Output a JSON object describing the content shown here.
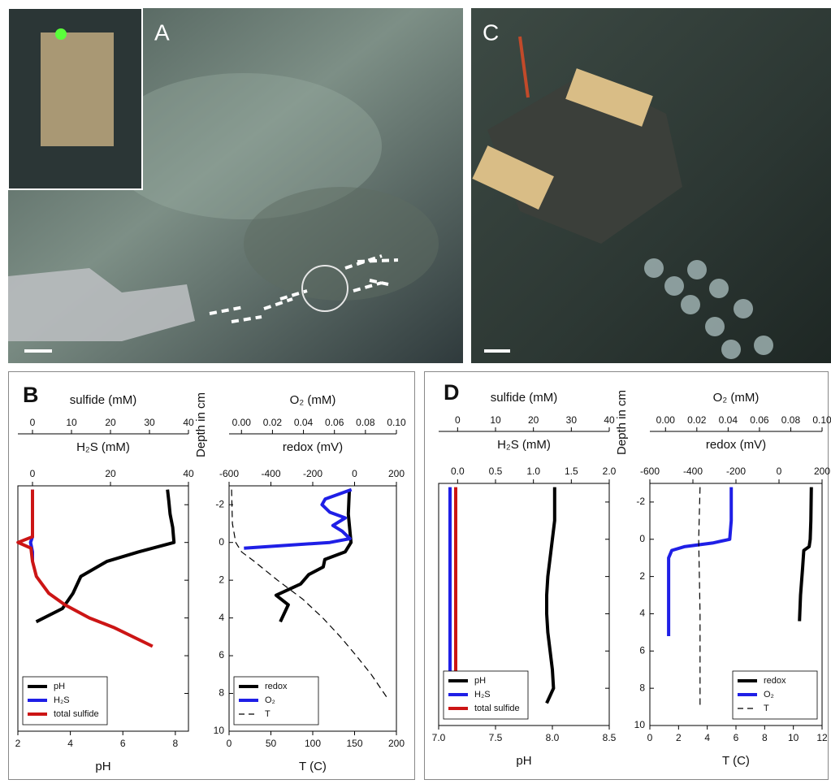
{
  "photos": [
    {
      "label": "A"
    },
    {
      "label": "C"
    }
  ],
  "chart_data": [
    {
      "type": "line",
      "panel": "B",
      "ylim": [
        10,
        -3
      ],
      "yticks": [
        -2,
        0,
        2,
        4,
        6,
        8,
        10
      ],
      "legend": "lower left",
      "axes": {
        "top": {
          "label": "sulfide (mM)",
          "lim": [
            -3.75,
            40
          ],
          "ticks": [
            0,
            10,
            20,
            30,
            40
          ]
        },
        "top2": {
          "label": "H₂S (mM)",
          "lim": [
            -3.75,
            40
          ],
          "ticks": [
            0,
            20,
            40
          ]
        },
        "bottom": {
          "label": "pH",
          "lim": [
            2,
            8.5
          ],
          "ticks": [
            2,
            4,
            6,
            8
          ]
        }
      },
      "series": [
        {
          "name": "pH",
          "color": "#000000",
          "axis": "bottom",
          "depth": [
            -2.8,
            -2.2,
            -1.5,
            -0.8,
            0,
            0.5,
            1,
            1.8,
            2.7,
            3.5,
            4.2
          ],
          "values": [
            7.7,
            7.75,
            7.8,
            7.9,
            7.95,
            6.6,
            5.4,
            4.4,
            4.1,
            3.7,
            2.7
          ]
        },
        {
          "name": "H₂S",
          "color": "#1f1fe6",
          "axis": "top2",
          "depth": [
            -2.8,
            -1,
            -0.3,
            0,
            0.2,
            0.5,
            1
          ],
          "values": [
            0,
            0,
            0,
            -0.5,
            -0.3,
            0,
            0
          ]
        },
        {
          "name": "total sulfide",
          "color": "#cc1515",
          "axis": "top",
          "depth": [
            -2.8,
            -1,
            -0.3,
            0,
            0.3,
            1,
            1.8,
            2.7,
            3.3,
            4,
            4.5,
            5.5
          ],
          "values": [
            0,
            0,
            0,
            -3.7,
            -0.4,
            0,
            1,
            4.2,
            8.3,
            14.6,
            20.8,
            30.8
          ]
        }
      ]
    },
    {
      "type": "line",
      "ylim": [
        10,
        -3
      ],
      "yticks": [
        -2,
        0,
        2,
        4,
        6,
        8,
        10
      ],
      "y_label": "Depth in cm",
      "legend": "lower left",
      "axes": {
        "top": {
          "label": "O₂ (mM)",
          "lim": [
            -0.008,
            0.1
          ],
          "ticks": [
            {
              "value": 0,
              "label": "0.00"
            },
            0.02,
            0.04,
            0.06,
            0.08,
            {
              "value": 0.1,
              "label": "0.10"
            }
          ]
        },
        "top2": {
          "label": "redox (mV)",
          "lim": [
            -600,
            200
          ],
          "ticks": [
            -600,
            -400,
            -200,
            0,
            200
          ]
        },
        "bottom": {
          "label": "T (C)",
          "lim": [
            0,
            200
          ],
          "ticks": [
            0,
            50,
            100,
            150,
            200
          ]
        }
      },
      "series": [
        {
          "name": "redox",
          "color": "#000000",
          "axis": "top2",
          "depth": [
            -2.8,
            -1.5,
            0,
            0.5,
            0.9,
            1.3,
            1.7,
            2.2,
            2.8,
            3.3,
            4.2
          ],
          "values": [
            -25,
            -30,
            -17,
            -45,
            -142,
            -150,
            -219,
            -258,
            -375,
            -317,
            -355
          ]
        },
        {
          "name": "O₂",
          "color": "#1f1fe6",
          "axis": "top",
          "depth": [
            -2.8,
            -2.3,
            -2,
            -1.6,
            -1.3,
            -0.9,
            -0.6,
            -0.2,
            0,
            0.3
          ],
          "values": [
            0.071,
            0.054,
            0.052,
            0.057,
            0.067,
            0.059,
            0.065,
            0.07,
            0.057,
            0.0016
          ]
        },
        {
          "name": "T",
          "color": "#000000",
          "axis": "bottom",
          "dash": true,
          "depth": [
            -2.8,
            -1,
            0,
            0.5,
            1,
            2,
            3,
            4,
            5,
            6,
            7,
            8.3
          ],
          "values": [
            3,
            4,
            8,
            15,
            30,
            58,
            88,
            112,
            133,
            152,
            170,
            190
          ]
        }
      ]
    },
    {
      "type": "line",
      "panel": "D",
      "ylim": [
        10,
        -3
      ],
      "yticks": [
        -2,
        0,
        2,
        4,
        6,
        8,
        10
      ],
      "legend": "lower left",
      "axes": {
        "top": {
          "label": "sulfide (mM)",
          "lim": [
            -5,
            40
          ],
          "ticks": [
            0,
            10,
            20,
            30,
            40
          ]
        },
        "top2": {
          "label": "H₂S (mM)",
          "lim": [
            -0.25,
            2
          ],
          "ticks": [
            {
              "value": 0,
              "label": "0.0"
            },
            0.5,
            {
              "value": 1,
              "label": "1.0"
            },
            1.5,
            {
              "value": 2,
              "label": "2.0"
            }
          ]
        },
        "bottom": {
          "label": "pH",
          "lim": [
            7,
            8.5
          ],
          "ticks": [
            {
              "value": 7,
              "label": "7.0"
            },
            7.5,
            {
              "value": 8,
              "label": "8.0"
            },
            8.5
          ]
        }
      },
      "series": [
        {
          "name": "pH",
          "color": "#000000",
          "axis": "bottom",
          "depth": [
            -2.8,
            -1,
            0,
            1,
            2,
            3,
            4,
            5,
            6,
            7,
            8,
            8.8
          ],
          "values": [
            8.02,
            8.02,
            8,
            7.98,
            7.96,
            7.95,
            7.95,
            7.96,
            7.98,
            8,
            8.01,
            7.95
          ]
        },
        {
          "name": "H₂S",
          "color": "#1f1fe6",
          "axis": "top2",
          "depth": [
            -2.8,
            0,
            4,
            8.8
          ],
          "values": [
            -0.1,
            -0.1,
            -0.1,
            -0.1
          ]
        },
        {
          "name": "total sulfide",
          "color": "#cc1515",
          "axis": "top",
          "depth": [
            -2.8,
            0,
            4,
            8.8
          ],
          "values": [
            -0.5,
            -0.5,
            -0.5,
            -0.5
          ]
        }
      ]
    },
    {
      "type": "line",
      "ylim": [
        10,
        -3
      ],
      "yticks": [
        -2,
        0,
        2,
        4,
        6,
        8,
        10
      ],
      "y_label": "Depth in cm",
      "legend": "lower right",
      "axes": {
        "top": {
          "label": "O₂ (mM)",
          "lim": [
            -0.01,
            0.1
          ],
          "ticks": [
            {
              "value": 0,
              "label": "0.00"
            },
            0.02,
            0.04,
            0.06,
            0.08,
            {
              "value": 0.1,
              "label": "0.10"
            }
          ]
        },
        "top2": {
          "label": "redox (mV)",
          "lim": [
            -600,
            200
          ],
          "ticks": [
            -600,
            -400,
            -200,
            0,
            200
          ]
        },
        "bottom": {
          "label": "T (C)",
          "lim": [
            0,
            12
          ],
          "ticks": [
            0,
            2,
            4,
            6,
            8,
            10,
            12
          ]
        }
      },
      "series": [
        {
          "name": "redox",
          "color": "#000000",
          "axis": "top2",
          "depth": [
            -2.8,
            -1,
            0,
            0.4,
            0.6,
            1.5,
            3,
            4.4
          ],
          "values": [
            150,
            148,
            145,
            140,
            115,
            110,
            100,
            95
          ]
        },
        {
          "name": "O₂",
          "color": "#1f1fe6",
          "axis": "top",
          "depth": [
            -2.8,
            -1,
            0,
            0.2,
            0.4,
            0.6,
            1,
            3,
            5.2
          ],
          "values": [
            0.042,
            0.042,
            0.041,
            0.03,
            0.012,
            0.004,
            0.002,
            0.002,
            0.002
          ]
        },
        {
          "name": "T",
          "color": "#000000",
          "axis": "bottom",
          "dash": true,
          "depth": [
            -2.8,
            0,
            4,
            9
          ],
          "values": [
            3.5,
            3.4,
            3.5,
            3.5
          ]
        }
      ]
    }
  ]
}
